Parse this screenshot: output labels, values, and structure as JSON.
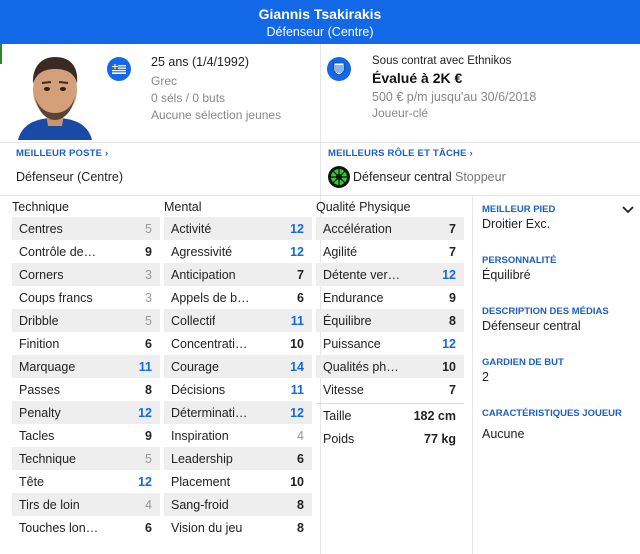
{
  "header": {
    "name": "Giannis Tsakirakis",
    "position": "Défenseur (Centre)"
  },
  "bio": {
    "age": "25 ans (1/4/1992)",
    "nationality": "Grec",
    "caps": "0 séls / 0 buts",
    "youth": "Aucune sélection jeunes",
    "contract": "Sous contrat avec Ethnikos",
    "value": "Évalué à 2K €",
    "wage": "500 € p/m jusqu'au 30/6/2018",
    "status": "Joueur-clé"
  },
  "roles": {
    "best_position_label": "MEILLEUR POSTE",
    "best_position": "Défenseur (Centre)",
    "best_role_label": "MEILLEURS RÔLE ET TÂCHE",
    "best_role": "Défenseur central",
    "best_duty": "Stoppeur"
  },
  "technique": {
    "title": "Technique",
    "rows": [
      {
        "label": "Centres",
        "value": "5"
      },
      {
        "label": "Contrôle de…",
        "value": "9"
      },
      {
        "label": "Corners",
        "value": "3"
      },
      {
        "label": "Coups francs",
        "value": "3"
      },
      {
        "label": "Dribble",
        "value": "5"
      },
      {
        "label": "Finition",
        "value": "6"
      },
      {
        "label": "Marquage",
        "value": "11"
      },
      {
        "label": "Passes",
        "value": "8"
      },
      {
        "label": "Penalty",
        "value": "12"
      },
      {
        "label": "Tacles",
        "value": "9"
      },
      {
        "label": "Technique",
        "value": "5"
      },
      {
        "label": "Tête",
        "value": "12"
      },
      {
        "label": "Tirs de loin",
        "value": "4"
      },
      {
        "label": "Touches lon…",
        "value": "6"
      }
    ]
  },
  "mental": {
    "title": "Mental",
    "rows": [
      {
        "label": "Activité",
        "value": "12"
      },
      {
        "label": "Agressivité",
        "value": "12"
      },
      {
        "label": "Anticipation",
        "value": "7"
      },
      {
        "label": "Appels de b…",
        "value": "6"
      },
      {
        "label": "Collectif",
        "value": "11"
      },
      {
        "label": "Concentrati…",
        "value": "10"
      },
      {
        "label": "Courage",
        "value": "14"
      },
      {
        "label": "Décisions",
        "value": "11"
      },
      {
        "label": "Déterminati…",
        "value": "12"
      },
      {
        "label": "Inspiration",
        "value": "4"
      },
      {
        "label": "Leadership",
        "value": "6"
      },
      {
        "label": "Placement",
        "value": "10"
      },
      {
        "label": "Sang-froid",
        "value": "8"
      },
      {
        "label": "Vision du jeu",
        "value": "8"
      }
    ]
  },
  "physical": {
    "title": "Qualité Physique",
    "rows": [
      {
        "label": "Accélération",
        "value": "7"
      },
      {
        "label": "Agilité",
        "value": "7"
      },
      {
        "label": "Détente ver…",
        "value": "12"
      },
      {
        "label": "Endurance",
        "value": "9"
      },
      {
        "label": "Équilibre",
        "value": "8"
      },
      {
        "label": "Puissance",
        "value": "12"
      },
      {
        "label": "Qualités ph…",
        "value": "10"
      },
      {
        "label": "Vitesse",
        "value": "7"
      }
    ],
    "height_label": "Taille",
    "height": "182 cm",
    "weight_label": "Poids",
    "weight": "77 kg"
  },
  "side": {
    "foot_label": "MEILLEUR PIED",
    "foot": "Droitier Exc.",
    "personality_label": "PERSONNALITÉ",
    "personality": "Équilibré",
    "media_label": "DESCRIPTION DES MÉDIAS",
    "media": "Défenseur central",
    "gk_label": "GARDIEN DE BUT",
    "gk": "2",
    "traits_label": "CARACTÉRISTIQUES JOUEUR",
    "traits": "Aucune"
  },
  "colors": {
    "accent": "#1368e8",
    "grey_value": "#999999"
  }
}
